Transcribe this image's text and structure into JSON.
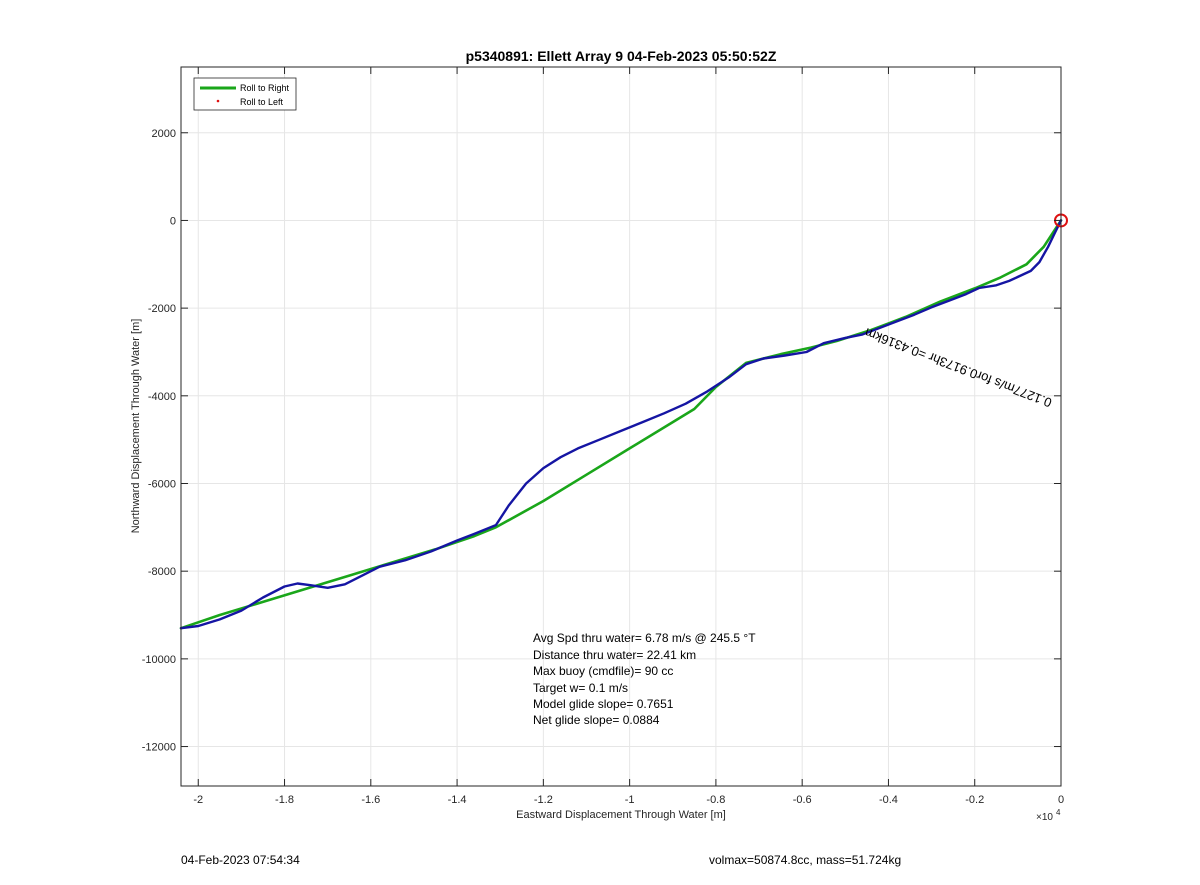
{
  "chart_data": {
    "type": "line",
    "title": "p5340891: Ellett Array 9 04-Feb-2023 05:50:52Z",
    "xlabel": "Eastward Displacement Through Water [m]",
    "ylabel": "Northward Displacement Through Water [m]",
    "x_multiplier_label": "×10",
    "x_multiplier_exponent": "4",
    "xlim": [
      -2.04,
      0
    ],
    "ylim": [
      -12900,
      3500
    ],
    "xticks": [
      -2,
      -1.8,
      -1.6,
      -1.4,
      -1.2,
      -1,
      -0.8,
      -0.6,
      -0.4,
      -0.2,
      0
    ],
    "xtick_labels": [
      "-2",
      "-1.8",
      "-1.6",
      "-1.4",
      "-1.2",
      "-1",
      "-0.8",
      "-0.6",
      "-0.4",
      "-0.2",
      "0"
    ],
    "yticks": [
      2000,
      0,
      -2000,
      -4000,
      -6000,
      -8000,
      -10000,
      -12000
    ],
    "ytick_labels": [
      "2000",
      "0",
      "-2000",
      "-4000",
      "-6000",
      "-8000",
      "-10000",
      "-12000"
    ],
    "grid": true,
    "legend_position": "top-left",
    "legend": [
      {
        "label": "Roll to Right",
        "color": "#1aa61a",
        "style": "line"
      },
      {
        "label": "Roll to Left",
        "color": "#e01010",
        "style": "dot"
      }
    ],
    "series": [
      {
        "name": "Roll to Right",
        "color": "#1aa61a",
        "x": [
          -2.04,
          -1.95,
          -1.85,
          -1.75,
          -1.65,
          -1.55,
          -1.45,
          -1.36,
          -1.31,
          -1.2,
          -1.1,
          -1.0,
          -0.9,
          -0.85,
          -0.8,
          -0.73,
          -0.65,
          -0.58,
          -0.52,
          -0.44,
          -0.36,
          -0.28,
          -0.2,
          -0.14,
          -0.08,
          -0.04,
          -0.01,
          0.0
        ],
        "y": [
          -9300,
          -9000,
          -8700,
          -8400,
          -8100,
          -7800,
          -7500,
          -7200,
          -7000,
          -6400,
          -5800,
          -5200,
          -4600,
          -4300,
          -3800,
          -3250,
          -3050,
          -2900,
          -2750,
          -2500,
          -2200,
          -1850,
          -1550,
          -1300,
          -1000,
          -600,
          -150,
          0
        ]
      },
      {
        "name": "",
        "color": "#1515a3",
        "x": [
          -2.04,
          -2.0,
          -1.95,
          -1.9,
          -1.85,
          -1.8,
          -1.77,
          -1.74,
          -1.7,
          -1.66,
          -1.62,
          -1.58,
          -1.52,
          -1.46,
          -1.4,
          -1.36,
          -1.31,
          -1.28,
          -1.24,
          -1.2,
          -1.16,
          -1.12,
          -1.07,
          -1.02,
          -0.97,
          -0.92,
          -0.87,
          -0.82,
          -0.77,
          -0.73,
          -0.69,
          -0.64,
          -0.59,
          -0.55,
          -0.5,
          -0.46,
          -0.42,
          -0.38,
          -0.34,
          -0.3,
          -0.26,
          -0.22,
          -0.19,
          -0.15,
          -0.12,
          -0.07,
          -0.05,
          -0.03,
          -0.015,
          0.0
        ],
        "y": [
          -9300,
          -9250,
          -9100,
          -8900,
          -8600,
          -8350,
          -8280,
          -8320,
          -8380,
          -8300,
          -8100,
          -7900,
          -7750,
          -7550,
          -7300,
          -7150,
          -6950,
          -6500,
          -6000,
          -5650,
          -5400,
          -5200,
          -5000,
          -4800,
          -4600,
          -4400,
          -4180,
          -3900,
          -3580,
          -3280,
          -3150,
          -3080,
          -3000,
          -2800,
          -2680,
          -2600,
          -2450,
          -2300,
          -2150,
          -1980,
          -1830,
          -1680,
          -1540,
          -1480,
          -1380,
          -1150,
          -950,
          -600,
          -300,
          0
        ]
      }
    ],
    "start_marker": {
      "x": 0,
      "y": 0,
      "color": "#dd1111"
    },
    "segment_annotation": {
      "text": "0.1277m/s for0.9173hr =0.4316km",
      "x": -0.45,
      "y": -2450,
      "angle_deg": 201
    },
    "stats_lines": [
      "Avg Spd thru water=  6.78 m/s @ 245.5 °T",
      "Distance thru water= 22.41 km",
      "Max buoy (cmdfile)= 90 cc",
      "Target w= 0.1 m/s",
      "Model glide slope= 0.7651",
      "Net glide slope= 0.0884"
    ]
  },
  "footer": {
    "timestamp": "04-Feb-2023 07:54:34",
    "mass_info": "volmax=50874.8cc, mass=51.724kg"
  }
}
